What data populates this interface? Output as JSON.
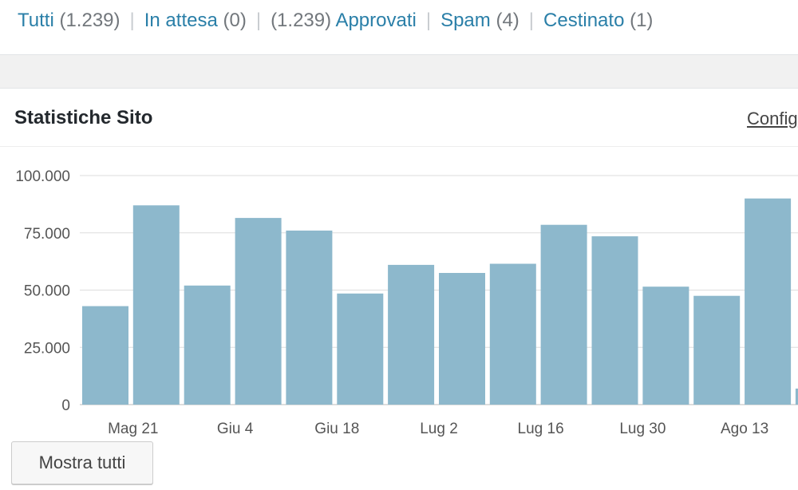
{
  "filters": [
    {
      "label": "Tutti",
      "count": "(1.239)",
      "count_first": false
    },
    {
      "label": "In attesa",
      "count": "(0)",
      "count_first": false
    },
    {
      "label": "Approvati",
      "count": "(1.239)",
      "count_first": true
    },
    {
      "label": "Spam",
      "count": "(4)",
      "count_first": false
    },
    {
      "label": "Cestinato",
      "count": "(1)",
      "count_first": false
    }
  ],
  "widget": {
    "title": "Statistiche Sito",
    "config_label": "Config",
    "show_all_label": "Mostra tutti"
  },
  "chart_data": {
    "type": "bar",
    "ylim": [
      0,
      100000
    ],
    "yticks": [
      0,
      25000,
      50000,
      75000,
      100000
    ],
    "ytick_labels": [
      "0",
      "25.000",
      "50.000",
      "75.000",
      "100.000"
    ],
    "xtick_labels": [
      "Mag 21",
      "Giu 4",
      "Giu 18",
      "Lug 2",
      "Lug 16",
      "Lug 30",
      "Ago 13"
    ],
    "values": [
      43000,
      87000,
      52000,
      81500,
      76000,
      48500,
      61000,
      57500,
      61500,
      78500,
      73500,
      51500,
      47500,
      90000,
      7000
    ],
    "grid": true,
    "bar_color": "#8db8cc",
    "grid_color": "#dddddd"
  }
}
